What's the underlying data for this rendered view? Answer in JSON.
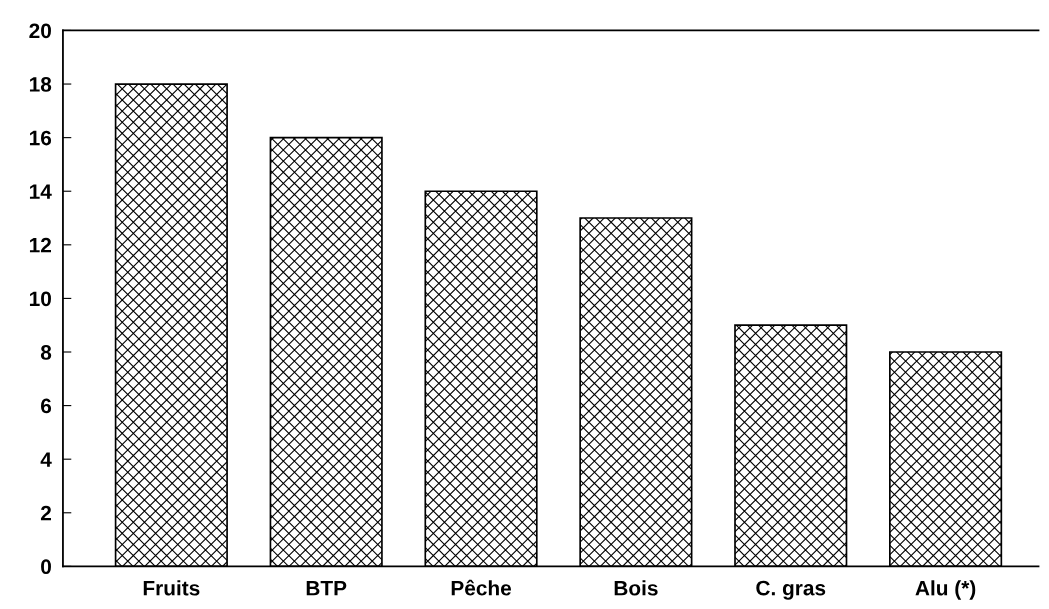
{
  "chart_data": {
    "type": "bar",
    "categories": [
      "Fruits",
      "BTP",
      "Pêche",
      "Bois",
      "C. gras",
      "Alu (*)"
    ],
    "values": [
      18,
      16,
      14,
      13,
      9,
      8
    ],
    "color": "#000000",
    "ylim": [
      0,
      20
    ],
    "yticks": [
      0,
      2,
      4,
      6,
      8,
      10,
      12,
      14,
      16,
      18,
      20
    ],
    "grid": false
  }
}
